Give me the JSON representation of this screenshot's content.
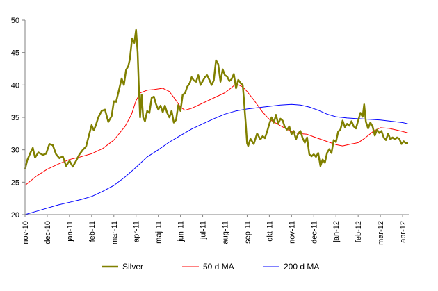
{
  "chart_data": {
    "type": "line",
    "title": "",
    "xlabel": "",
    "ylabel": "",
    "ylim": [
      20,
      50
    ],
    "yticks": [
      20,
      25,
      30,
      35,
      40,
      45,
      50
    ],
    "x_tick_labels": [
      "nov-10",
      "dec-10",
      "jan-11",
      "feb-11",
      "mar-11",
      "apr-11",
      "maj-11",
      "jun-11",
      "jul-11",
      "aug-11",
      "sep-11",
      "okt-11",
      "nov-11",
      "dec-11",
      "jan-12",
      "feb-12",
      "mar-12",
      "apr-12"
    ],
    "x_unit": "month index (0 = nov-10)",
    "grid": false,
    "legend_position": "bottom",
    "series": [
      {
        "name": "Silver",
        "color": "#808000",
        "points": [
          [
            0,
            27
          ],
          [
            0.1,
            28.4
          ],
          [
            0.25,
            29.6
          ],
          [
            0.35,
            30.3
          ],
          [
            0.45,
            28.8
          ],
          [
            0.6,
            29.6
          ],
          [
            0.8,
            29.2
          ],
          [
            0.95,
            29.4
          ],
          [
            1.1,
            30.9
          ],
          [
            1.25,
            30.7
          ],
          [
            1.4,
            29.3
          ],
          [
            1.55,
            28.7
          ],
          [
            1.7,
            29.0
          ],
          [
            1.85,
            27.5
          ],
          [
            2.0,
            28.3
          ],
          [
            2.15,
            27.4
          ],
          [
            2.3,
            28.3
          ],
          [
            2.45,
            29.3
          ],
          [
            2.6,
            30.0
          ],
          [
            2.75,
            30.5
          ],
          [
            2.9,
            32.5
          ],
          [
            3.0,
            33.8
          ],
          [
            3.1,
            33.0
          ],
          [
            3.2,
            33.9
          ],
          [
            3.3,
            35.0
          ],
          [
            3.45,
            36.0
          ],
          [
            3.6,
            36.2
          ],
          [
            3.75,
            34.3
          ],
          [
            3.9,
            35.2
          ],
          [
            4.0,
            37.5
          ],
          [
            4.1,
            37.4
          ],
          [
            4.2,
            38.8
          ],
          [
            4.35,
            41.0
          ],
          [
            4.45,
            40.0
          ],
          [
            4.55,
            42.3
          ],
          [
            4.65,
            42.9
          ],
          [
            4.72,
            44.0
          ],
          [
            4.82,
            47.2
          ],
          [
            4.92,
            46.5
          ],
          [
            5.0,
            48.5
          ],
          [
            5.07,
            45.0
          ],
          [
            5.12,
            40.0
          ],
          [
            5.18,
            35.0
          ],
          [
            5.25,
            38.5
          ],
          [
            5.32,
            35.0
          ],
          [
            5.4,
            34.4
          ],
          [
            5.5,
            36.0
          ],
          [
            5.6,
            35.7
          ],
          [
            5.7,
            38.0
          ],
          [
            5.8,
            38.2
          ],
          [
            5.9,
            37.0
          ],
          [
            6.0,
            36.2
          ],
          [
            6.1,
            36.8
          ],
          [
            6.2,
            35.8
          ],
          [
            6.3,
            36.8
          ],
          [
            6.4,
            35.7
          ],
          [
            6.5,
            35.0
          ],
          [
            6.6,
            36.0
          ],
          [
            6.7,
            34.2
          ],
          [
            6.8,
            34.6
          ],
          [
            6.9,
            36.9
          ],
          [
            7.0,
            36.0
          ],
          [
            7.1,
            38.5
          ],
          [
            7.2,
            38.7
          ],
          [
            7.3,
            39.7
          ],
          [
            7.42,
            40.3
          ],
          [
            7.5,
            41.2
          ],
          [
            7.6,
            40.7
          ],
          [
            7.7,
            40.5
          ],
          [
            7.8,
            41.5
          ],
          [
            7.9,
            40.0
          ],
          [
            8.0,
            40.6
          ],
          [
            8.1,
            41.2
          ],
          [
            8.2,
            41.5
          ],
          [
            8.3,
            40.8
          ],
          [
            8.4,
            40.0
          ],
          [
            8.5,
            40.7
          ],
          [
            8.6,
            43.8
          ],
          [
            8.7,
            43.2
          ],
          [
            8.8,
            40.5
          ],
          [
            8.9,
            42.4
          ],
          [
            9.0,
            41.5
          ],
          [
            9.1,
            41.3
          ],
          [
            9.2,
            40.6
          ],
          [
            9.3,
            40.9
          ],
          [
            9.4,
            41.7
          ],
          [
            9.5,
            39.5
          ],
          [
            9.6,
            40.8
          ],
          [
            9.7,
            40.3
          ],
          [
            9.8,
            40.0
          ],
          [
            9.85,
            38.0
          ],
          [
            9.9,
            35.6
          ],
          [
            9.94,
            34.0
          ],
          [
            10.0,
            31.0
          ],
          [
            10.05,
            30.6
          ],
          [
            10.15,
            31.7
          ],
          [
            10.3,
            30.9
          ],
          [
            10.45,
            32.5
          ],
          [
            10.6,
            31.6
          ],
          [
            10.7,
            32.1
          ],
          [
            10.8,
            31.8
          ],
          [
            10.9,
            32.8
          ],
          [
            11.0,
            34.0
          ],
          [
            11.1,
            35.0
          ],
          [
            11.2,
            34.2
          ],
          [
            11.3,
            35.4
          ],
          [
            11.4,
            34.0
          ],
          [
            11.5,
            34.8
          ],
          [
            11.6,
            34.5
          ],
          [
            11.7,
            33.5
          ],
          [
            11.8,
            33.1
          ],
          [
            11.9,
            33.6
          ],
          [
            12.0,
            32.4
          ],
          [
            12.1,
            32.9
          ],
          [
            12.2,
            31.6
          ],
          [
            12.3,
            32.5
          ],
          [
            12.4,
            32.9
          ],
          [
            12.5,
            31.8
          ],
          [
            12.6,
            31.1
          ],
          [
            12.7,
            31.9
          ],
          [
            12.8,
            29.3
          ],
          [
            12.9,
            29.0
          ],
          [
            13.0,
            29.3
          ],
          [
            13.1,
            28.9
          ],
          [
            13.2,
            29.5
          ],
          [
            13.3,
            27.5
          ],
          [
            13.4,
            28.5
          ],
          [
            13.5,
            28.0
          ],
          [
            13.6,
            29.5
          ],
          [
            13.7,
            30.1
          ],
          [
            13.8,
            29.5
          ],
          [
            13.9,
            31.5
          ],
          [
            14.0,
            31.2
          ],
          [
            14.1,
            32.8
          ],
          [
            14.2,
            33.1
          ],
          [
            14.3,
            34.5
          ],
          [
            14.4,
            33.5
          ],
          [
            14.5,
            34.0
          ],
          [
            14.6,
            33.7
          ],
          [
            14.7,
            34.4
          ],
          [
            14.8,
            33.6
          ],
          [
            14.9,
            33.3
          ],
          [
            15.0,
            34.5
          ],
          [
            15.1,
            35.7
          ],
          [
            15.2,
            35.1
          ],
          [
            15.27,
            37.0
          ],
          [
            15.35,
            34.3
          ],
          [
            15.45,
            33.3
          ],
          [
            15.55,
            34.2
          ],
          [
            15.65,
            33.6
          ],
          [
            15.75,
            32.2
          ],
          [
            15.85,
            33.1
          ],
          [
            15.95,
            32.6
          ],
          [
            16.05,
            32.9
          ],
          [
            16.15,
            31.9
          ],
          [
            16.25,
            31.5
          ],
          [
            16.35,
            32.5
          ],
          [
            16.45,
            31.6
          ],
          [
            16.55,
            31.9
          ],
          [
            16.65,
            31.6
          ],
          [
            16.75,
            31.9
          ],
          [
            16.85,
            31.7
          ],
          [
            16.95,
            30.9
          ],
          [
            17.05,
            31.3
          ],
          [
            17.15,
            31.0
          ],
          [
            17.25,
            31.0
          ]
        ]
      },
      {
        "name": "50 d MA",
        "color": "#ff0000",
        "points": [
          [
            0,
            24.5
          ],
          [
            0.5,
            25.9
          ],
          [
            1.0,
            27.0
          ],
          [
            1.5,
            27.8
          ],
          [
            2.0,
            28.5
          ],
          [
            2.5,
            28.9
          ],
          [
            3.0,
            29.4
          ],
          [
            3.5,
            30.2
          ],
          [
            4.0,
            31.5
          ],
          [
            4.5,
            33.6
          ],
          [
            4.8,
            35.5
          ],
          [
            5.0,
            37.6
          ],
          [
            5.2,
            38.8
          ],
          [
            5.5,
            39.2
          ],
          [
            5.8,
            39.3
          ],
          [
            6.2,
            39.5
          ],
          [
            6.5,
            39.0
          ],
          [
            6.8,
            37.6
          ],
          [
            7.0,
            36.6
          ],
          [
            7.2,
            36.1
          ],
          [
            7.5,
            36.4
          ],
          [
            8.0,
            37.2
          ],
          [
            8.5,
            38.0
          ],
          [
            9.0,
            38.8
          ],
          [
            9.3,
            39.6
          ],
          [
            9.5,
            40.2
          ],
          [
            9.8,
            39.7
          ],
          [
            10.0,
            39.0
          ],
          [
            10.3,
            37.7
          ],
          [
            10.7,
            35.8
          ],
          [
            11.0,
            34.7
          ],
          [
            11.5,
            33.7
          ],
          [
            12.0,
            32.8
          ],
          [
            12.3,
            32.5
          ],
          [
            12.7,
            32.4
          ],
          [
            13.0,
            32.0
          ],
          [
            13.5,
            31.4
          ],
          [
            14.0,
            30.8
          ],
          [
            14.3,
            30.6
          ],
          [
            14.7,
            30.9
          ],
          [
            15.0,
            31.1
          ],
          [
            15.3,
            31.8
          ],
          [
            15.7,
            32.9
          ],
          [
            16.0,
            33.4
          ],
          [
            16.4,
            33.3
          ],
          [
            16.8,
            33.0
          ],
          [
            17.25,
            32.6
          ]
        ]
      },
      {
        "name": "200 d MA",
        "color": "#0000ff",
        "points": [
          [
            0,
            20.0
          ],
          [
            0.5,
            20.5
          ],
          [
            1.0,
            21.0
          ],
          [
            1.5,
            21.5
          ],
          [
            2.0,
            21.9
          ],
          [
            2.5,
            22.3
          ],
          [
            3.0,
            22.8
          ],
          [
            3.5,
            23.6
          ],
          [
            4.0,
            24.5
          ],
          [
            4.5,
            25.8
          ],
          [
            5.0,
            27.3
          ],
          [
            5.5,
            28.9
          ],
          [
            6.0,
            30.0
          ],
          [
            6.5,
            31.2
          ],
          [
            7.0,
            32.2
          ],
          [
            7.5,
            33.2
          ],
          [
            8.0,
            34.0
          ],
          [
            8.5,
            34.8
          ],
          [
            9.0,
            35.5
          ],
          [
            9.5,
            36.0
          ],
          [
            10.0,
            36.3
          ],
          [
            10.5,
            36.5
          ],
          [
            11.0,
            36.7
          ],
          [
            11.5,
            36.9
          ],
          [
            12.0,
            37.0
          ],
          [
            12.4,
            36.9
          ],
          [
            12.8,
            36.6
          ],
          [
            13.2,
            36.1
          ],
          [
            13.6,
            35.5
          ],
          [
            14.0,
            35.1
          ],
          [
            14.5,
            34.9
          ],
          [
            15.0,
            34.8
          ],
          [
            15.5,
            34.7
          ],
          [
            16.0,
            34.6
          ],
          [
            16.5,
            34.4
          ],
          [
            17.0,
            34.2
          ],
          [
            17.25,
            34.0
          ]
        ]
      }
    ]
  }
}
